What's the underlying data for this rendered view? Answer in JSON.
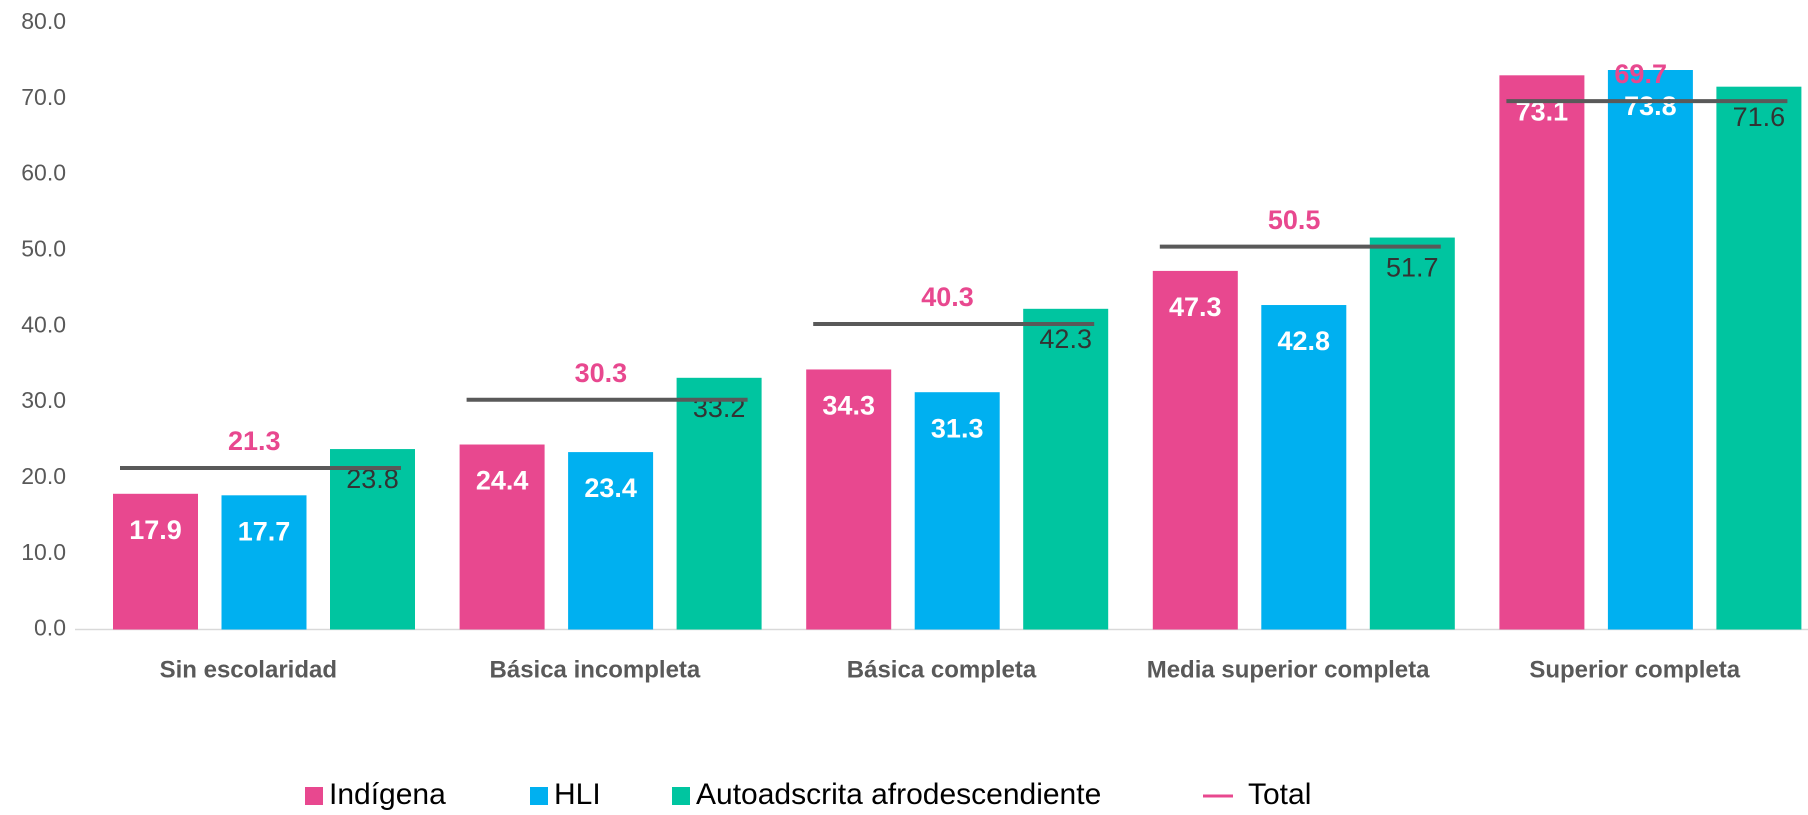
{
  "chart_data": {
    "type": "bar",
    "categories": [
      "Sin escolaridad",
      "Básica incompleta",
      "Básica completa",
      "Media superior completa",
      "Superior completa"
    ],
    "series": [
      {
        "name": "Indígena",
        "color": "#E8488F",
        "values": [
          17.9,
          24.4,
          34.3,
          47.3,
          73.1
        ]
      },
      {
        "name": "HLI",
        "color": "#00B0F0",
        "values": [
          17.7,
          23.4,
          31.3,
          42.8,
          73.8
        ]
      },
      {
        "name": "Autoadscrita afrodescendiente",
        "color": "#00C5A0",
        "values": [
          23.8,
          33.2,
          42.3,
          51.7,
          71.6
        ]
      },
      {
        "name": "Total",
        "type": "line",
        "color": "#E8488F",
        "line_color": "#595959",
        "values": [
          21.3,
          30.3,
          40.3,
          50.5,
          69.7
        ]
      }
    ],
    "ylim": [
      0,
      80
    ],
    "yticks": [
      {
        "value": 0,
        "label": "0.0"
      },
      {
        "value": 10,
        "label": "10.0"
      },
      {
        "value": 20,
        "label": "20.0"
      },
      {
        "value": 30,
        "label": "30.0"
      },
      {
        "value": 40,
        "label": "40.0"
      },
      {
        "value": 50,
        "label": "50.0"
      },
      {
        "value": 60,
        "label": "60.0"
      },
      {
        "value": 70,
        "label": "70.0"
      },
      {
        "value": 80,
        "label": "80.0"
      }
    ],
    "legend": "bottom"
  }
}
